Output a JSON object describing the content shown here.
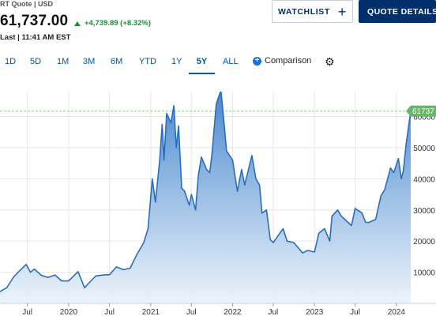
{
  "quote": {
    "subtitle": "RT Quote | USD",
    "price": "61,737.00",
    "change": "+4,739.89 (+8.32%)",
    "last_time": "Last | 11:41 AM EST"
  },
  "buttons": {
    "watchlist": "WATCHLIST",
    "watchlist_icon": "+",
    "quote_details": "QUOTE DETAILS"
  },
  "ranges": [
    {
      "label": "1D",
      "active": false
    },
    {
      "label": "5D",
      "active": false
    },
    {
      "label": "1M",
      "active": false
    },
    {
      "label": "3M",
      "active": false
    },
    {
      "label": "6M",
      "active": false
    },
    {
      "label": "YTD",
      "active": false
    },
    {
      "label": "1Y",
      "active": false
    },
    {
      "label": "5Y",
      "active": true
    },
    {
      "label": "ALL",
      "active": false
    }
  ],
  "comparison": {
    "icon": "plus-circle-icon",
    "label": "Comparison"
  },
  "settings": {
    "icon": "gear-icon"
  },
  "colors": {
    "line": "#2a6ebb",
    "area_top": "#3f82cc",
    "area_bottom": "#eaf2fb",
    "last_price_badge": "#6ab56a",
    "accent": "#002f6c",
    "positive": "#1e8a3c"
  },
  "chart_data": {
    "type": "area",
    "title": "",
    "xlabel": "",
    "ylabel": "",
    "ylim": [
      0,
      68000
    ],
    "xlim": [
      "2019-03-01",
      "2024-03-05"
    ],
    "y_ticks": [
      10000,
      20000,
      30000,
      40000,
      50000,
      60000
    ],
    "y_tick_labels": [
      "10000",
      "20000",
      "30000",
      "40000",
      "50000",
      "60000"
    ],
    "x_ticks": [
      "2019-07-01",
      "2020-01-01",
      "2020-07-01",
      "2021-01-01",
      "2021-07-01",
      "2022-01-01",
      "2022-07-01",
      "2023-01-01",
      "2023-07-01",
      "2024-01-01"
    ],
    "x_tick_labels": [
      "Jul",
      "2020",
      "Jul",
      "2021",
      "Jul",
      "2022",
      "Jul",
      "2023",
      "Jul",
      "2024"
    ],
    "last_value": 61737,
    "last_value_label": "61737",
    "grid": true,
    "series": [
      {
        "x": [
          "2019-03-01",
          "2019-04-01",
          "2019-05-01",
          "2019-06-01",
          "2019-06-26",
          "2019-07-15",
          "2019-08-01",
          "2019-09-01",
          "2019-10-01",
          "2019-11-01",
          "2019-12-01",
          "2020-01-01",
          "2020-02-12",
          "2020-03-12",
          "2020-04-01",
          "2020-05-01",
          "2020-06-01",
          "2020-07-01",
          "2020-08-01",
          "2020-09-01",
          "2020-10-01",
          "2020-11-01",
          "2020-12-01",
          "2020-12-20",
          "2021-01-08",
          "2021-01-22",
          "2021-02-10",
          "2021-02-21",
          "2021-03-01",
          "2021-03-13",
          "2021-04-01",
          "2021-04-14",
          "2021-04-25",
          "2021-05-05",
          "2021-05-19",
          "2021-06-01",
          "2021-06-22",
          "2021-07-01",
          "2021-07-20",
          "2021-08-01",
          "2021-08-15",
          "2021-09-07",
          "2021-09-21",
          "2021-10-01",
          "2021-10-20",
          "2021-11-10",
          "2021-11-25",
          "2021-12-05",
          "2022-01-01",
          "2022-01-22",
          "2022-02-10",
          "2022-02-24",
          "2022-03-28",
          "2022-04-15",
          "2022-05-01",
          "2022-05-12",
          "2022-06-01",
          "2022-06-18",
          "2022-07-01",
          "2022-08-14",
          "2022-09-01",
          "2022-10-01",
          "2022-11-09",
          "2022-12-01",
          "2023-01-01",
          "2023-01-20",
          "2023-02-15",
          "2023-03-10",
          "2023-03-20",
          "2023-04-14",
          "2023-05-01",
          "2023-06-15",
          "2023-07-01",
          "2023-08-01",
          "2023-08-17",
          "2023-09-01",
          "2023-10-01",
          "2023-10-24",
          "2023-11-10",
          "2023-12-06",
          "2023-12-20",
          "2024-01-10",
          "2024-01-23",
          "2024-02-01",
          "2024-02-15",
          "2024-02-25",
          "2024-03-05"
        ],
        "y": [
          3800,
          5100,
          8500,
          10800,
          12500,
          10000,
          11000,
          9000,
          8300,
          9100,
          7200,
          7200,
          10200,
          5000,
          6600,
          8800,
          9100,
          9200,
          11700,
          10800,
          11300,
          15800,
          19500,
          24000,
          40000,
          32500,
          46000,
          57500,
          46000,
          61000,
          58000,
          63500,
          50000,
          57000,
          37000,
          36000,
          31500,
          35000,
          30000,
          41000,
          47000,
          43000,
          42000,
          48000,
          64000,
          68500,
          57000,
          49000,
          46000,
          36000,
          43000,
          38000,
          47500,
          40000,
          38000,
          29000,
          30000,
          20500,
          19500,
          24000,
          20000,
          19500,
          16200,
          17000,
          16500,
          22500,
          24000,
          20000,
          28000,
          30000,
          28000,
          25000,
          30500,
          29000,
          26000,
          26000,
          27000,
          34500,
          36500,
          43500,
          42000,
          46500,
          40000,
          42500,
          52000,
          57000,
          61737
        ]
      }
    ]
  }
}
